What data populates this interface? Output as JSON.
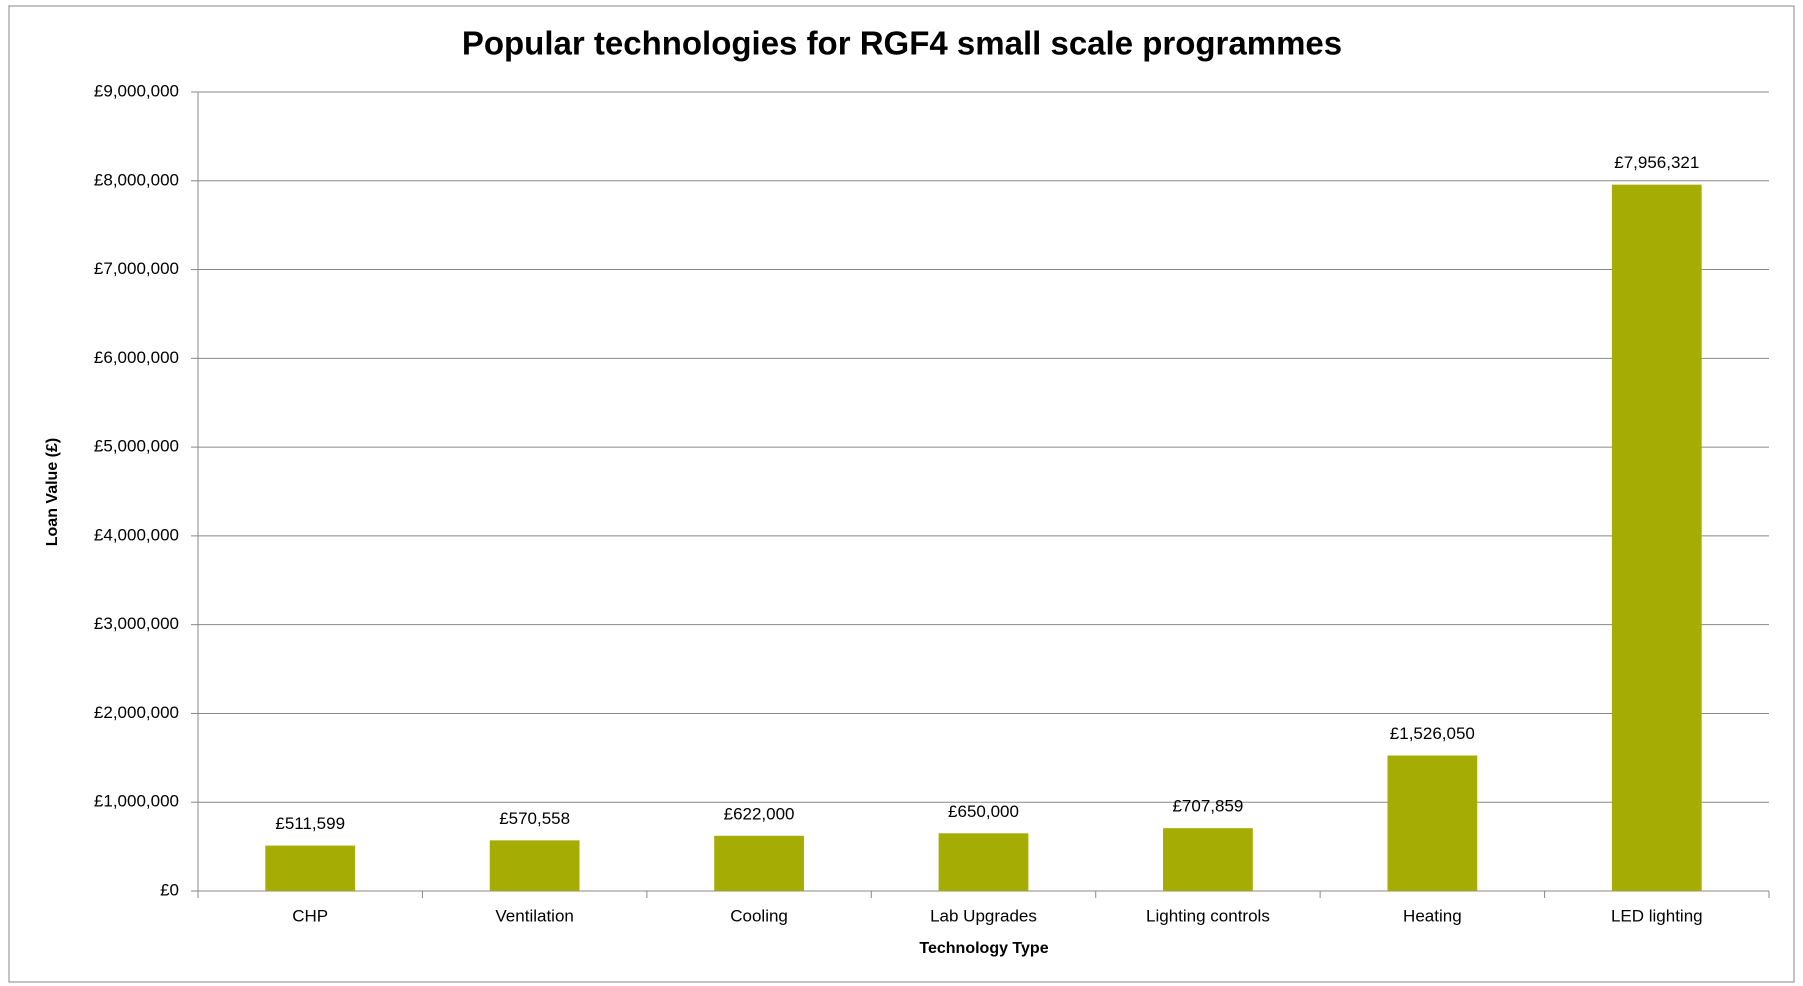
{
  "chart_data": {
    "type": "bar",
    "title": "Popular technologies for RGF4 small scale programmes",
    "x_label": "Technology Type",
    "y_label": "Loan Value (£)",
    "categories": [
      "CHP",
      "Ventilation",
      "Cooling",
      "Lab Upgrades",
      "Lighting controls",
      "Heating",
      "LED lighting"
    ],
    "values": [
      511599,
      570558,
      622000,
      650000,
      707859,
      1526050,
      7956321
    ],
    "value_labels": [
      "£511,599",
      "£570,558",
      "£622,000",
      "£650,000",
      "£707,859",
      "£1,526,050",
      "£7,956,321"
    ],
    "color": "#a5ad05",
    "ylim": [
      0,
      9000000
    ],
    "yticks": [
      {
        "value": 0,
        "label": "£0"
      },
      {
        "value": 1000000,
        "label": "£1,000,000"
      },
      {
        "value": 2000000,
        "label": "£2,000,000"
      },
      {
        "value": 3000000,
        "label": "£3,000,000"
      },
      {
        "value": 4000000,
        "label": "£4,000,000"
      },
      {
        "value": 5000000,
        "label": "£5,000,000"
      },
      {
        "value": 6000000,
        "label": "£6,000,000"
      },
      {
        "value": 7000000,
        "label": "£7,000,000"
      },
      {
        "value": 8000000,
        "label": "£8,000,000"
      },
      {
        "value": 9000000,
        "label": "£9,000,000"
      }
    ],
    "grid": true
  }
}
